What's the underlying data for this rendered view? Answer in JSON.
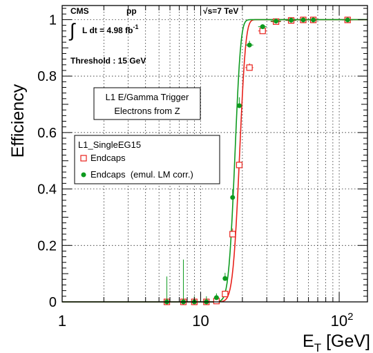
{
  "chart_data": {
    "type": "scatter",
    "xscale": "log",
    "xlim": [
      1,
      160
    ],
    "ylim": [
      0,
      1.05
    ],
    "xlabel": "E_T [GeV]",
    "ylabel": "Efficiency",
    "xticks": [
      {
        "value": 1,
        "label": "1"
      },
      {
        "value": 10,
        "label": "10"
      },
      {
        "value": 100,
        "label": "10",
        "sup": "2"
      }
    ],
    "yticks": [
      {
        "value": 0,
        "label": "0"
      },
      {
        "value": 0.2,
        "label": "0.2"
      },
      {
        "value": 0.4,
        "label": "0.4"
      },
      {
        "value": 0.6,
        "label": "0.6"
      },
      {
        "value": 0.8,
        "label": "0.8"
      },
      {
        "value": 1,
        "label": "1"
      }
    ],
    "grid": true,
    "annotations": {
      "experiment": "CMS",
      "collision": "pp",
      "energy": "√s=7 TeV",
      "lumi_prefix": "L dt = 4.98 fb",
      "lumi_exp": "-1",
      "threshold": "Threshold : 15 GeV",
      "box_line1": "L1 E/Gamma Trigger",
      "box_line2": "Electrons from Z"
    },
    "legend": {
      "title": "L1_SingleEG15",
      "placement": "middle-left"
    },
    "series": [
      {
        "name": "Endcaps",
        "marker": "open-square",
        "color": "#e8201a",
        "points": [
          {
            "x": 5.7,
            "y": 0.0,
            "xerr": 0.3,
            "yerr_up": 0.0
          },
          {
            "x": 7.5,
            "y": 0.0,
            "xerr": 0.3,
            "yerr_up": 0.0
          },
          {
            "x": 9.0,
            "y": 0.0,
            "xerr": 0.4,
            "yerr_up": 0.0
          },
          {
            "x": 11.0,
            "y": 0.0,
            "xerr": 0.5,
            "yerr_up": 0.0
          },
          {
            "x": 13.0,
            "y": 0.003,
            "xerr": 0.5,
            "yerr_up": 0.01
          },
          {
            "x": 15.0,
            "y": 0.028,
            "xerr": 0.5,
            "yerr_up": 0.012
          },
          {
            "x": 17.0,
            "y": 0.24,
            "xerr": 0.5,
            "yerr_up": 0.02
          },
          {
            "x": 19.0,
            "y": 0.485,
            "xerr": 0.5,
            "yerr_up": 0.02
          },
          {
            "x": 22.5,
            "y": 0.83,
            "xerr": 1.5,
            "yerr_up": 0.015
          },
          {
            "x": 28.0,
            "y": 0.96,
            "xerr": 2.0,
            "yerr_up": 0.008
          },
          {
            "x": 35.0,
            "y": 0.993,
            "xerr": 3.0,
            "yerr_up": 0.004
          },
          {
            "x": 45.0,
            "y": 0.997,
            "xerr": 4.0,
            "yerr_up": 0.002
          },
          {
            "x": 55.0,
            "y": 0.999,
            "xerr": 5.0,
            "yerr_up": 0.001
          },
          {
            "x": 65.0,
            "y": 0.999,
            "xerr": 5.0,
            "yerr_up": 0.001
          },
          {
            "x": 115.0,
            "y": 0.999,
            "xerr": 10.0,
            "yerr_up": 0.001
          }
        ],
        "fit": {
          "x0": 19.0,
          "width": 1.6,
          "plateau": 1.0
        }
      },
      {
        "name": "Endcaps  (emul. LM corr.)",
        "marker": "filled-circle",
        "color": "#0d9a1e",
        "points": [
          {
            "x": 5.7,
            "y": 0.0,
            "xerr": 0.3,
            "yerr_up": 0.09
          },
          {
            "x": 7.5,
            "y": 0.0,
            "xerr": 0.3,
            "yerr_up": 0.15
          },
          {
            "x": 9.0,
            "y": 0.0,
            "xerr": 0.4,
            "yerr_up": 0.02
          },
          {
            "x": 11.0,
            "y": 0.0,
            "xerr": 0.5,
            "yerr_up": 0.02
          },
          {
            "x": 13.0,
            "y": 0.015,
            "xerr": 0.5,
            "yerr_up": 0.015
          },
          {
            "x": 15.0,
            "y": 0.083,
            "xerr": 0.5,
            "yerr_up": 0.02
          },
          {
            "x": 17.0,
            "y": 0.37,
            "xerr": 0.5,
            "yerr_up": 0.03
          },
          {
            "x": 19.0,
            "y": 0.695,
            "xerr": 0.5,
            "yerr_up": 0.03
          },
          {
            "x": 22.5,
            "y": 0.91,
            "xerr": 1.5,
            "yerr_up": 0.015
          },
          {
            "x": 28.0,
            "y": 0.975,
            "xerr": 2.0,
            "yerr_up": 0.008
          },
          {
            "x": 35.0,
            "y": 0.995,
            "xerr": 3.0,
            "yerr_up": 0.004
          },
          {
            "x": 45.0,
            "y": 0.998,
            "xerr": 4.0,
            "yerr_up": 0.002
          },
          {
            "x": 55.0,
            "y": 0.999,
            "xerr": 5.0,
            "yerr_up": 0.001
          },
          {
            "x": 65.0,
            "y": 0.999,
            "xerr": 5.0,
            "yerr_up": 0.001
          },
          {
            "x": 115.0,
            "y": 0.999,
            "xerr": 10.0,
            "yerr_up": 0.001
          }
        ],
        "fit": {
          "x0": 17.6,
          "width": 1.4,
          "plateau": 1.0
        }
      }
    ]
  }
}
